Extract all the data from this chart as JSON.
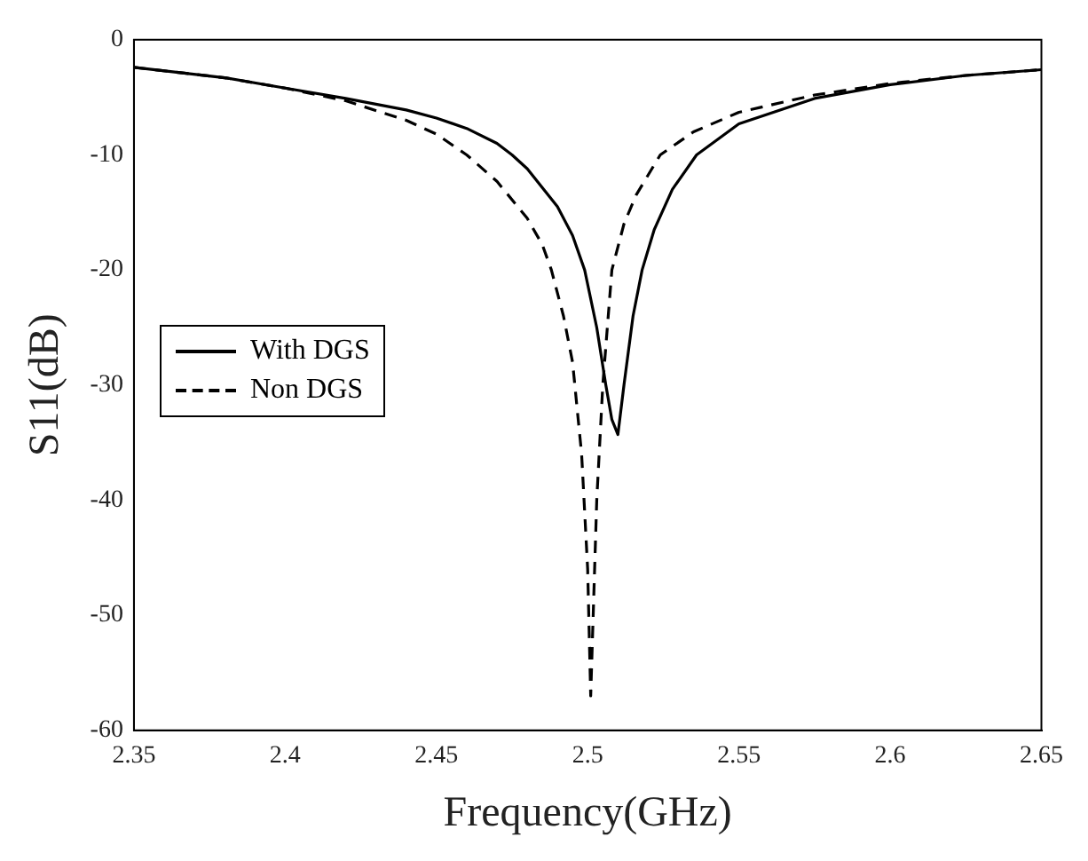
{
  "chart_data": {
    "type": "line",
    "xlabel": "Frequency(GHz)",
    "ylabel": "S11(dB)",
    "xlim": [
      2.35,
      2.65
    ],
    "xticks": [
      2.35,
      2.4,
      2.45,
      2.5,
      2.55,
      2.6,
      2.65
    ],
    "ylim": [
      -60,
      0
    ],
    "yticks": [
      -60,
      -50,
      -40,
      -30,
      -20,
      -10,
      0
    ],
    "grid": false,
    "legend": "left",
    "marker": "none",
    "series": [
      {
        "name": "With DGS",
        "color": "#000000",
        "line_style": "solid",
        "x": [
          2.35,
          2.38,
          2.4,
          2.42,
          2.44,
          2.45,
          2.46,
          2.47,
          2.475,
          2.48,
          2.49,
          2.495,
          2.499,
          2.503,
          2.506,
          2.508,
          2.51,
          2.512,
          2.515,
          2.518,
          2.522,
          2.528,
          2.536,
          2.55,
          2.575,
          2.6,
          2.625,
          2.65
        ],
        "values": [
          -2.4,
          -3.3,
          -4.2,
          -5.1,
          -6.1,
          -6.8,
          -7.7,
          -9,
          -10,
          -11.2,
          -14.5,
          -17,
          -20,
          -25,
          -30,
          -33,
          -34.3,
          -30,
          -24,
          -20,
          -16.5,
          -13,
          -10,
          -7.3,
          -5.1,
          -3.9,
          -3.1,
          -2.6
        ]
      },
      {
        "name": "Non DGS",
        "color": "#000000",
        "line_style": "dashed",
        "x": [
          2.35,
          2.38,
          2.4,
          2.42,
          2.44,
          2.45,
          2.46,
          2.47,
          2.48,
          2.485,
          2.488,
          2.492,
          2.495,
          2.498,
          2.5,
          2.501,
          2.503,
          2.505,
          2.508,
          2.512,
          2.516,
          2.524,
          2.535,
          2.55,
          2.575,
          2.6,
          2.625,
          2.65
        ],
        "values": [
          -2.4,
          -3.3,
          -4.2,
          -5.3,
          -7,
          -8.2,
          -10,
          -12.3,
          -15.5,
          -17.8,
          -20,
          -24,
          -28,
          -36,
          -46,
          -57,
          -40,
          -30,
          -20,
          -16,
          -13.5,
          -10,
          -8,
          -6.3,
          -4.8,
          -3.8,
          -3.1,
          -2.6
        ]
      }
    ]
  }
}
